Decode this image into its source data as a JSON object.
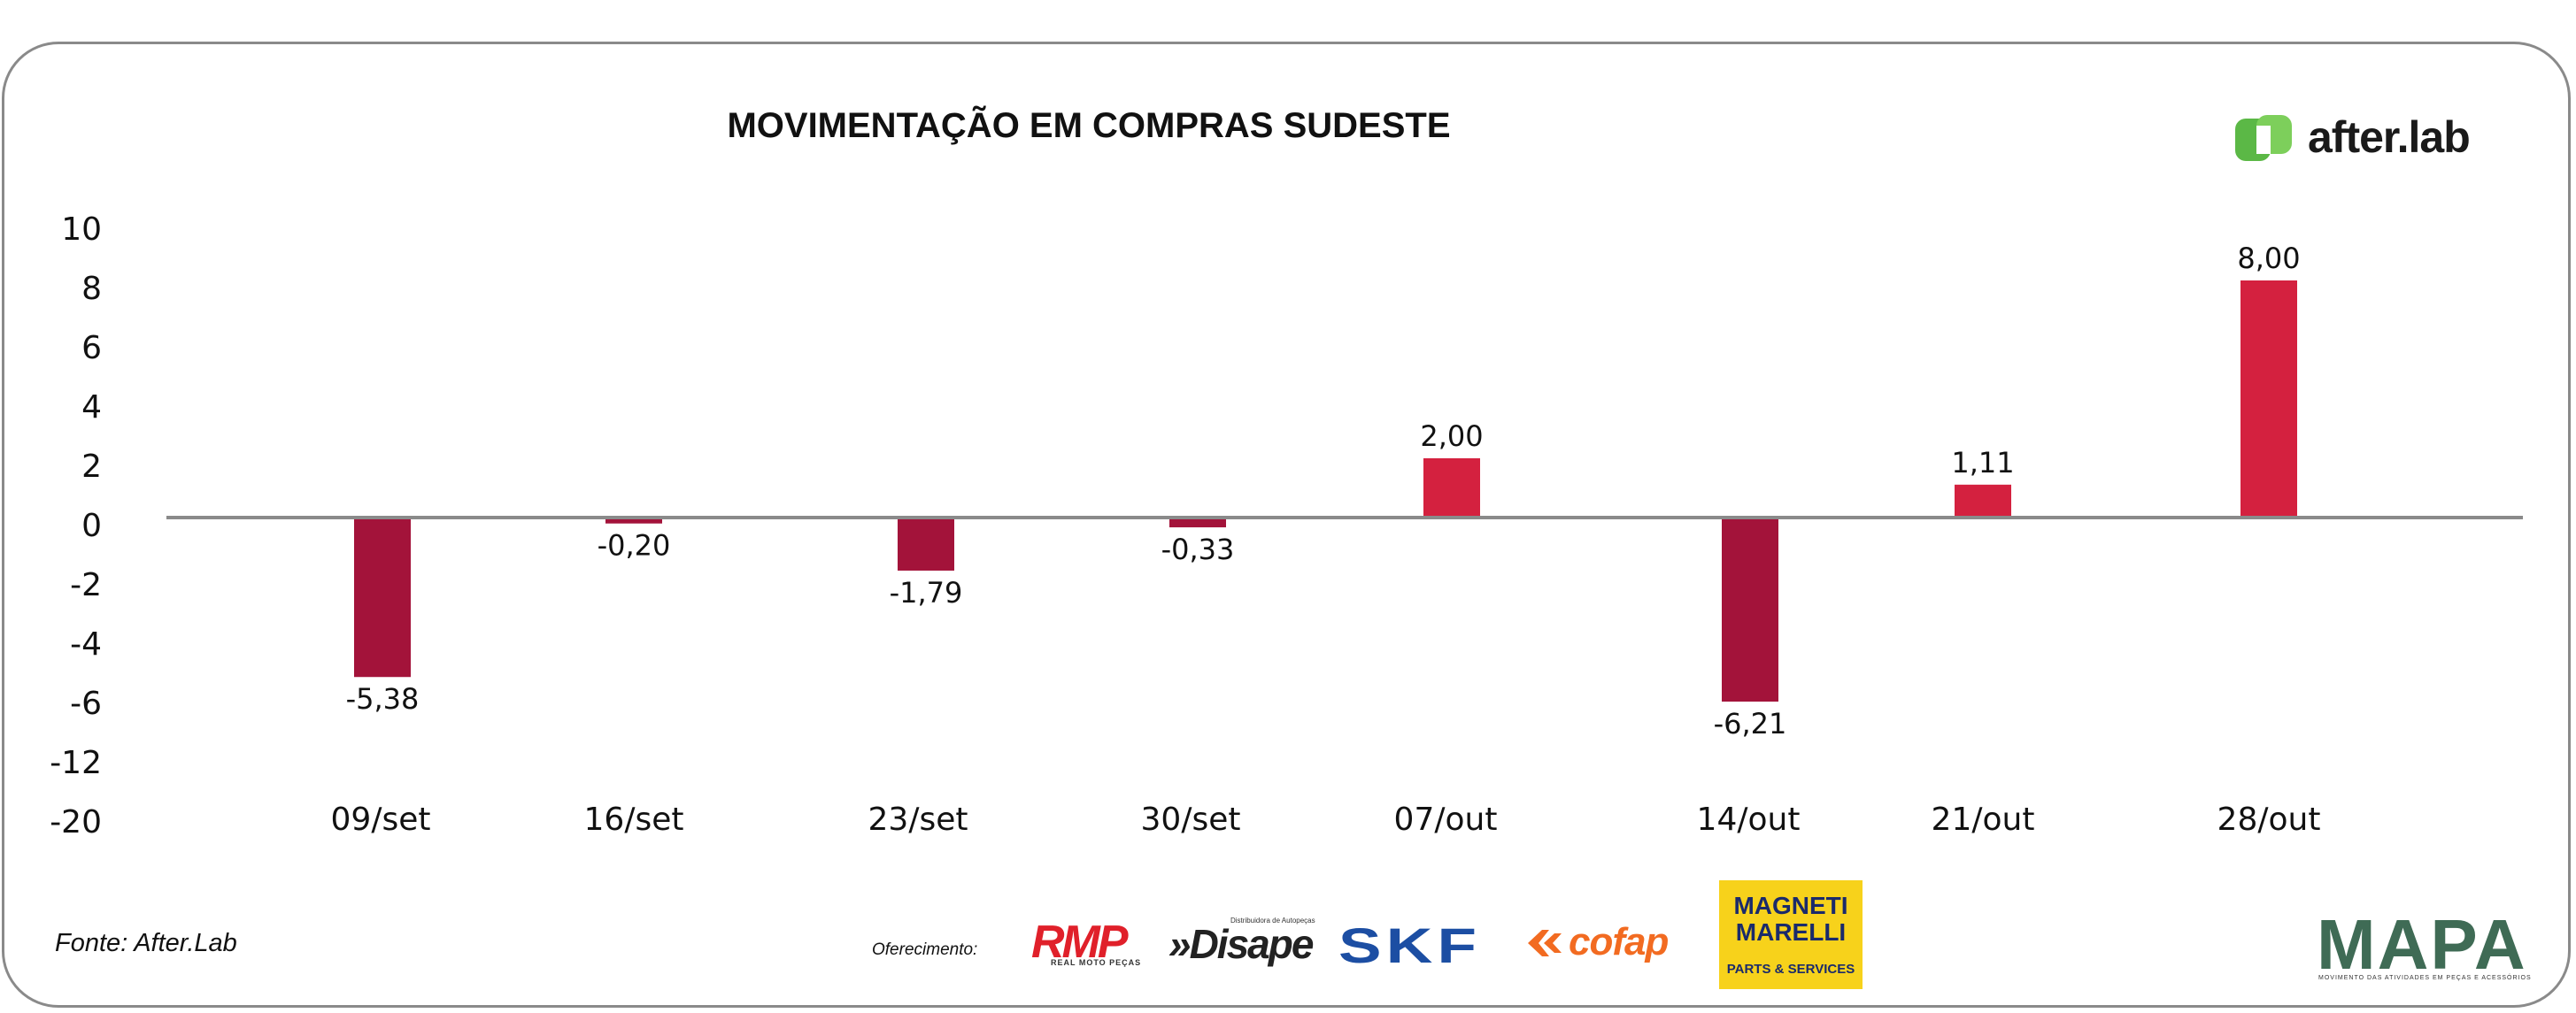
{
  "chart_data": {
    "type": "bar",
    "title": "MOVIMENTAÇÃO EM COMPRAS SUDESTE",
    "categories": [
      "09/set",
      "16/set",
      "23/set",
      "30/set",
      "07/out",
      "14/out",
      "21/out",
      "28/out"
    ],
    "values": [
      -5.38,
      -0.2,
      -1.79,
      -0.33,
      2.0,
      -6.21,
      1.11,
      8.0
    ],
    "value_labels": [
      "-5,38",
      "-0,20",
      "-1,79",
      "-0,33",
      "2,00",
      "-6,21",
      "1,11",
      "8,00"
    ],
    "y_tick_labels": [
      "10",
      "8",
      "6",
      "4",
      "2",
      "0",
      "-2",
      "-4",
      "-6",
      "-12",
      "-20"
    ],
    "ylim": [
      -20,
      10
    ],
    "grid": false,
    "legend": "none",
    "colors": {
      "positive": "#d4213f",
      "negative": "#a3133a",
      "axis": "#8a8a8a"
    }
  },
  "brand": {
    "name": "after.lab",
    "accent": "#5bb846"
  },
  "footer": {
    "source": "Fonte: After.Lab",
    "offer_label": "Oferecimento:"
  },
  "sponsors": {
    "rmp": {
      "name": "RMP",
      "sub": "REAL MOTO PEÇAS"
    },
    "disape": {
      "name": "»Disape",
      "sub": "Distribuidora de Autopeças"
    },
    "skf": {
      "name": "SKF"
    },
    "cofap": {
      "name": "cofap"
    },
    "magneti": {
      "name": "MAGNETI MARELLI",
      "sub": "PARTS & SERVICES"
    },
    "mapa": {
      "name": "MAPA",
      "sub": "MOVIMENTO DAS ATIVIDADES EM PEÇAS E ACESSÓRIOS"
    }
  }
}
